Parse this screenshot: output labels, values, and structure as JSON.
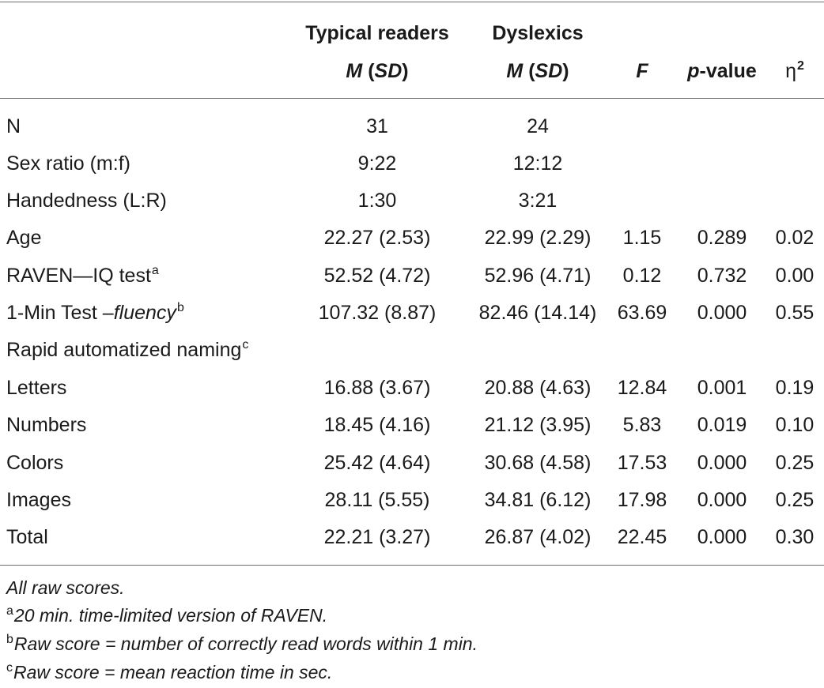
{
  "header": {
    "typical_group": "Typical readers",
    "dyslexic_group": "Dyslexics",
    "msd_m": "M",
    "msd_sd": "SD",
    "f": "F",
    "p_prefix": "p",
    "p_suffix": "-value",
    "eta": "η",
    "eta_exp": "2"
  },
  "rows": [
    {
      "label": "N",
      "sup": "",
      "italic": "",
      "tr": "31",
      "dys": "24",
      "f": "",
      "p": "",
      "eta": ""
    },
    {
      "label": "Sex ratio (m:f)",
      "sup": "",
      "italic": "",
      "tr": "9:22",
      "dys": "12:12",
      "f": "",
      "p": "",
      "eta": ""
    },
    {
      "label": "Handedness (L:R)",
      "sup": "",
      "italic": "",
      "tr": "1:30",
      "dys": "3:21",
      "f": "",
      "p": "",
      "eta": ""
    },
    {
      "label": "Age",
      "sup": "",
      "italic": "",
      "tr": "22.27 (2.53)",
      "dys": "22.99 (2.29)",
      "f": "1.15",
      "p": "0.289",
      "eta": "0.02"
    },
    {
      "label": "RAVEN—IQ test",
      "sup": "a",
      "italic": "",
      "tr": "52.52 (4.72)",
      "dys": "52.96 (4.71)",
      "f": "0.12",
      "p": "0.732",
      "eta": "0.00"
    },
    {
      "label": "1-Min Test –",
      "sup": "b",
      "italic": "fluency",
      "tr": "107.32 (8.87)",
      "dys": "82.46 (14.14)",
      "f": "63.69",
      "p": "0.000",
      "eta": "0.55"
    },
    {
      "label": "Rapid automatized naming",
      "sup": "c",
      "italic": "",
      "tr": "",
      "dys": "",
      "f": "",
      "p": "",
      "eta": ""
    },
    {
      "label": "Letters",
      "sup": "",
      "italic": "",
      "tr": "16.88 (3.67)",
      "dys": "20.88 (4.63)",
      "f": "12.84",
      "p": "0.001",
      "eta": "0.19"
    },
    {
      "label": "Numbers",
      "sup": "",
      "italic": "",
      "tr": "18.45 (4.16)",
      "dys": "21.12 (3.95)",
      "f": "5.83",
      "p": "0.019",
      "eta": "0.10"
    },
    {
      "label": "Colors",
      "sup": "",
      "italic": "",
      "tr": "25.42 (4.64)",
      "dys": "30.68 (4.58)",
      "f": "17.53",
      "p": "0.000",
      "eta": "0.25"
    },
    {
      "label": "Images",
      "sup": "",
      "italic": "",
      "tr": "28.11 (5.55)",
      "dys": "34.81 (6.12)",
      "f": "17.98",
      "p": "0.000",
      "eta": "0.25"
    },
    {
      "label": "Total",
      "sup": "",
      "italic": "",
      "tr": "22.21 (3.27)",
      "dys": "26.87 (4.02)",
      "f": "22.45",
      "p": "0.000",
      "eta": "0.30"
    }
  ],
  "notes": [
    {
      "sup": "",
      "text": "All raw scores."
    },
    {
      "sup": "a",
      "text": "20 min. time-limited version of RAVEN."
    },
    {
      "sup": "b",
      "text": "Raw score = number of correctly read words within 1 min."
    },
    {
      "sup": "c",
      "text": "Raw score = mean reaction time in sec."
    }
  ]
}
